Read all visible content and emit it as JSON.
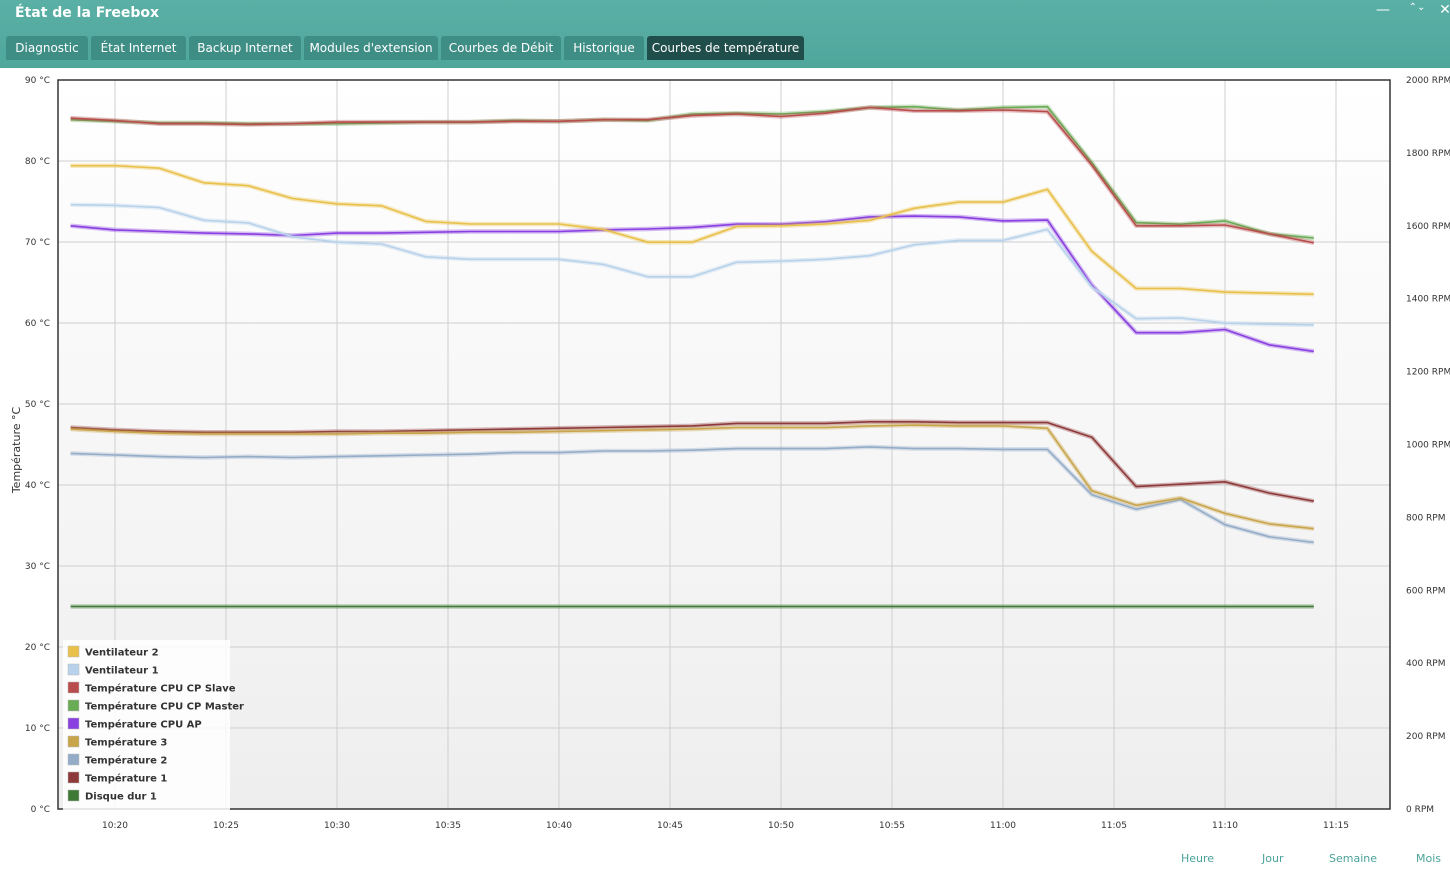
{
  "window": {
    "title": "État de la Freebox",
    "minimize_label": "—",
    "maximize_label": "⌃⌄",
    "close_label": "✕"
  },
  "tabs": [
    {
      "label": "Diagnostic",
      "active": false
    },
    {
      "label": "État Internet",
      "active": false
    },
    {
      "label": "Backup Internet",
      "active": false
    },
    {
      "label": "Modules d'extension",
      "active": false
    },
    {
      "label": "Courbes de Débit",
      "active": false
    },
    {
      "label": "Historique",
      "active": false
    },
    {
      "label": "Courbes de température",
      "active": true
    }
  ],
  "footer": {
    "links": [
      "Heure",
      "Jour",
      "Semaine",
      "Mois"
    ]
  },
  "chart_data": {
    "type": "line",
    "ylabel": "Température °C",
    "ylim": [
      0,
      90
    ],
    "y_ticks": [
      "0 °C",
      "10 °C",
      "20 °C",
      "30 °C",
      "40 °C",
      "50 °C",
      "60 °C",
      "70 °C",
      "80 °C",
      "90 °C"
    ],
    "y2lim": [
      0,
      2000
    ],
    "y2_ticks": [
      "0 RPM",
      "200 RPM",
      "400 RPM",
      "600 RPM",
      "800 RPM",
      "1000 RPM",
      "1200 RPM",
      "1400 RPM",
      "1600 RPM",
      "1800 RPM",
      "2000 RPM"
    ],
    "x_ticks": [
      "10:20",
      "10:25",
      "10:30",
      "10:35",
      "10:40",
      "10:45",
      "10:50",
      "10:55",
      "11:00",
      "11:05",
      "11:10",
      "11:15"
    ],
    "x": [
      "10:18",
      "10:20",
      "10:22",
      "10:24",
      "10:26",
      "10:28",
      "10:30",
      "10:32",
      "10:34",
      "10:36",
      "10:38",
      "10:40",
      "10:42",
      "10:44",
      "10:46",
      "10:48",
      "10:50",
      "10:52",
      "10:54",
      "10:56",
      "10:58",
      "11:00",
      "11:02",
      "11:04",
      "11:06",
      "11:08",
      "11:10",
      "11:12",
      "11:14"
    ],
    "grid": true,
    "legend_position": "bottom-left",
    "series": [
      {
        "name": "Ventilateur 2",
        "color": "#e8c04a",
        "axis": "right",
        "values": [
          1765,
          1765,
          1758,
          1718,
          1710,
          1675,
          1660,
          1655,
          1612,
          1605,
          1605,
          1605,
          1590,
          1555,
          1555,
          1598,
          1600,
          1605,
          1615,
          1648,
          1665,
          1665,
          1700,
          1530,
          1428,
          1428,
          1418,
          1415,
          1412
        ]
      },
      {
        "name": "Ventilateur 1",
        "color": "#b7d2ea",
        "axis": "right",
        "values": [
          1658,
          1656,
          1650,
          1615,
          1608,
          1570,
          1555,
          1550,
          1515,
          1508,
          1508,
          1508,
          1494,
          1460,
          1460,
          1500,
          1503,
          1508,
          1518,
          1548,
          1560,
          1560,
          1590,
          1432,
          1345,
          1347,
          1333,
          1330,
          1328
        ]
      },
      {
        "name": "Température CPU CP Slave",
        "color": "#b94d4d",
        "axis": "left",
        "values": [
          85.3,
          85.0,
          84.6,
          84.6,
          84.5,
          84.6,
          84.8,
          84.8,
          84.8,
          84.8,
          84.9,
          84.9,
          85.1,
          85.1,
          85.6,
          85.8,
          85.5,
          85.9,
          86.6,
          86.2,
          86.2,
          86.3,
          86.1,
          79.5,
          72.0,
          72.0,
          72.1,
          71.0,
          69.9
        ]
      },
      {
        "name": "Température CPU CP Master",
        "color": "#6aab55",
        "axis": "left",
        "values": [
          85.1,
          84.9,
          84.7,
          84.7,
          84.6,
          84.6,
          84.6,
          84.7,
          84.8,
          84.8,
          85.0,
          84.9,
          85.1,
          85.0,
          85.8,
          85.9,
          85.8,
          86.1,
          86.6,
          86.7,
          86.3,
          86.6,
          86.7,
          79.8,
          72.4,
          72.2,
          72.6,
          71.0,
          70.5
        ]
      },
      {
        "name": "Température CPU AP",
        "color": "#8a3fe0",
        "axis": "left",
        "values": [
          72.0,
          71.5,
          71.3,
          71.1,
          71.0,
          70.8,
          71.1,
          71.1,
          71.2,
          71.3,
          71.3,
          71.3,
          71.5,
          71.6,
          71.8,
          72.2,
          72.2,
          72.5,
          73.1,
          73.2,
          73.1,
          72.6,
          72.7,
          64.7,
          58.8,
          58.8,
          59.2,
          57.3,
          56.5
        ]
      },
      {
        "name": "Température 3",
        "color": "#c8a44a",
        "axis": "left",
        "values": [
          46.9,
          46.6,
          46.4,
          46.3,
          46.3,
          46.3,
          46.3,
          46.4,
          46.4,
          46.5,
          46.5,
          46.6,
          46.7,
          46.8,
          46.9,
          47.1,
          47.1,
          47.1,
          47.3,
          47.4,
          47.3,
          47.3,
          47.0,
          39.3,
          37.5,
          38.4,
          36.5,
          35.2,
          34.6
        ]
      },
      {
        "name": "Température 2",
        "color": "#94acc8",
        "axis": "left",
        "values": [
          43.9,
          43.7,
          43.5,
          43.4,
          43.5,
          43.4,
          43.5,
          43.6,
          43.7,
          43.8,
          44.0,
          44.0,
          44.2,
          44.2,
          44.3,
          44.5,
          44.5,
          44.5,
          44.7,
          44.5,
          44.5,
          44.4,
          44.4,
          38.8,
          37.0,
          38.2,
          35.1,
          33.6,
          32.9
        ]
      },
      {
        "name": "Température 1",
        "color": "#8e3a3a",
        "axis": "left",
        "values": [
          47.1,
          46.8,
          46.6,
          46.5,
          46.5,
          46.5,
          46.6,
          46.6,
          46.7,
          46.8,
          46.9,
          47.0,
          47.1,
          47.2,
          47.3,
          47.6,
          47.6,
          47.6,
          47.8,
          47.8,
          47.7,
          47.7,
          47.7,
          45.9,
          39.8,
          40.1,
          40.4,
          39.0,
          38.0
        ]
      },
      {
        "name": "Disque dur 1",
        "color": "#3e7a36",
        "axis": "left",
        "values": [
          25,
          25,
          25,
          25,
          25,
          25,
          25,
          25,
          25,
          25,
          25,
          25,
          25,
          25,
          25,
          25,
          25,
          25,
          25,
          25,
          25,
          25,
          25,
          25,
          25,
          25,
          25,
          25,
          25
        ]
      }
    ]
  }
}
